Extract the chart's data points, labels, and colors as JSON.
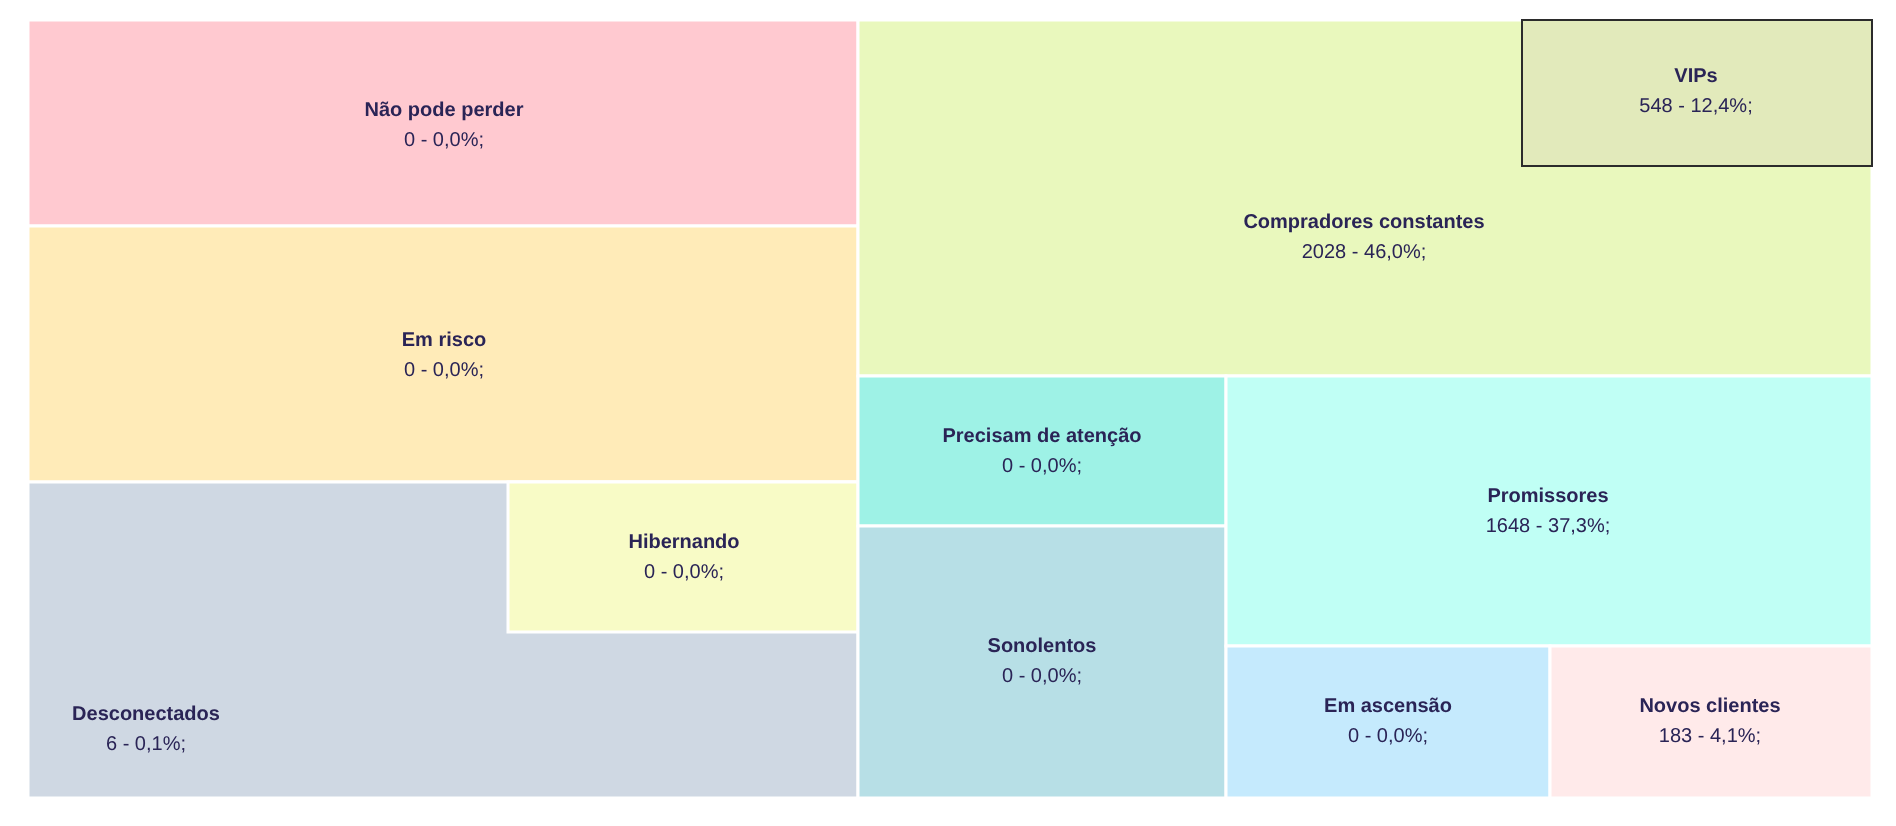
{
  "chart_data": {
    "type": "other",
    "categories": [
      "Não pode perder",
      "Em risco",
      "Desconectados",
      "Hibernando",
      "Compradores constantes",
      "VIPs",
      "Precisam de atenção",
      "Sonolentos",
      "Promissores",
      "Em ascensão",
      "Novos clientes"
    ],
    "values": [
      0,
      0,
      6,
      0,
      2028,
      548,
      0,
      0,
      1648,
      0,
      183
    ],
    "value_labels": [
      "0 - 0,0%;",
      "0 - 0,0%;",
      "6 - 0,1%;",
      "0 - 0,0%;",
      "2028 - 46,0%;",
      "548 - 12,4%;",
      "0 - 0,0%;",
      "0 - 0,0%;",
      "1648 - 37,3%;",
      "0 - 0,0%;",
      "183 - 4,1%;"
    ],
    "colors": [
      "#ffc9d0",
      "#ffebb8",
      "#cfd8e3",
      "#f8fbc6",
      "#e9f8bd",
      "#e2eabb",
      "#9ef2e6",
      "#b7dfe6",
      "#c0fff5",
      "#c5eafd",
      "#ffeaea"
    ]
  }
}
